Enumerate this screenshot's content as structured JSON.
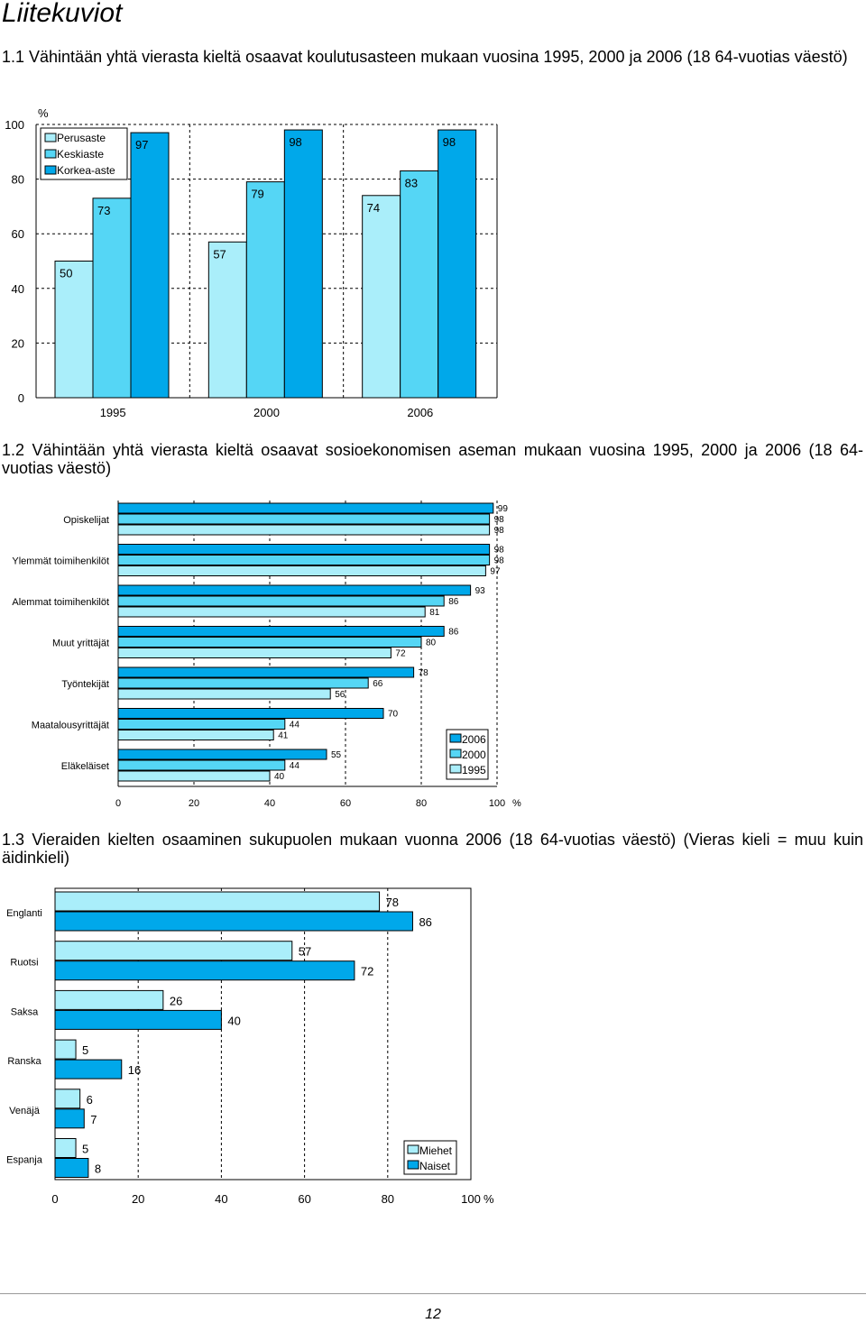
{
  "page": {
    "title": "Liitekuviot",
    "page_number": "12"
  },
  "captions": {
    "c1": "1.1 Vähintään yhtä vierasta kieltä osaavat koulutusasteen mukaan vuosina 1995, 2000 ja 2006 (18 64-vuotias väestö)",
    "c2": "1.2 Vähintään yhtä vierasta kieltä osaavat sosioekonomisen aseman mukaan vuosina 1995, 2000 ja 2006 (18 64-vuotias väestö)",
    "c3": "1.3 Vieraiden kielten osaaminen sukupuolen mukaan vuonna 2006 (18 64-vuotias väestö) (Vieras kieli = muu kuin äidinkieli)"
  },
  "colors": {
    "light": "#aaeefa",
    "mid": "#55d6f5",
    "dark": "#00a8ea",
    "grid": "#000000"
  },
  "chart_data": [
    {
      "type": "bar",
      "categories": [
        "1995",
        "2000",
        "2006"
      ],
      "series": [
        {
          "name": "Perusaste",
          "color": "light",
          "values": [
            50,
            57,
            74
          ]
        },
        {
          "name": "Keskiaste",
          "color": "mid",
          "values": [
            73,
            79,
            83
          ]
        },
        {
          "name": "Korkea-aste",
          "color": "dark",
          "values": [
            97,
            98,
            98
          ]
        }
      ],
      "ylabel": "%",
      "ylim": [
        0,
        100
      ],
      "yticks": [
        0,
        20,
        40,
        60,
        80,
        100
      ],
      "grid": true,
      "legend": "top-left"
    },
    {
      "type": "bar",
      "orientation": "horizontal",
      "categories": [
        "Opiskelijat",
        "Ylemmät toimihenkilöt",
        "Alemmat toimihenkilöt",
        "Muut yrittäjät",
        "Työntekijät",
        "Maatalousyrittäjät",
        "Eläkeläiset"
      ],
      "series": [
        {
          "name": "2006",
          "color": "dark",
          "values": [
            99,
            98,
            93,
            86,
            78,
            70,
            55
          ]
        },
        {
          "name": "2000",
          "color": "mid",
          "values": [
            98,
            98,
            86,
            80,
            66,
            44,
            44
          ]
        },
        {
          "name": "1995",
          "color": "light",
          "values": [
            98,
            97,
            81,
            72,
            56,
            41,
            40
          ]
        }
      ],
      "xlabel": "%",
      "xlim": [
        0,
        100
      ],
      "xticks": [
        0,
        20,
        40,
        60,
        80,
        100
      ],
      "grid": true,
      "legend": "bottom-right"
    },
    {
      "type": "bar",
      "orientation": "horizontal",
      "categories": [
        "Englanti",
        "Ruotsi",
        "Saksa",
        "Ranska",
        "Venäjä",
        "Espanja"
      ],
      "series": [
        {
          "name": "Miehet",
          "color": "light",
          "values": [
            78,
            57,
            26,
            5,
            6,
            5
          ]
        },
        {
          "name": "Naiset",
          "color": "dark",
          "values": [
            86,
            72,
            40,
            16,
            7,
            8
          ]
        }
      ],
      "xlabel": "%",
      "xlim": [
        0,
        100
      ],
      "xticks": [
        0,
        20,
        40,
        60,
        80,
        100
      ],
      "grid": true,
      "legend": "bottom-right"
    }
  ]
}
